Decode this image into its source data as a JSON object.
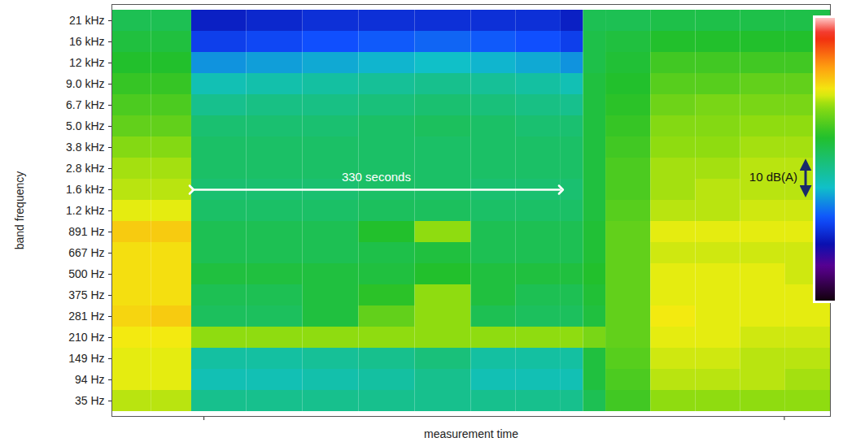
{
  "chart_data": {
    "type": "heatmap",
    "x_label": "measurement time",
    "y_label": "band frequency",
    "xlim": [
      0,
      640
    ],
    "xticks": [
      82,
      599
    ],
    "tick_labels": "y",
    "x_edges": [
      0,
      35,
      71,
      120,
      170,
      220,
      270,
      320,
      360,
      400,
      420,
      440,
      480,
      520,
      560,
      600,
      640
    ],
    "categories": [
      "35 Hz",
      "94 Hz",
      "149 Hz",
      "210 Hz",
      "281 Hz",
      "375 Hz",
      "500 Hz",
      "667 Hz",
      "891 Hz",
      "1.2 kHz",
      "1.6 kHz",
      "2.8 kHz",
      "3.8 kHz",
      "5.0 kHz",
      "6.7 kHz",
      "9.0 kHz",
      "12 kHz",
      "16 kHz",
      "21 kHz"
    ],
    "levels": [
      [
        64,
        64,
        42,
        42,
        42,
        42,
        42,
        42,
        42,
        42,
        48,
        55,
        62,
        62,
        62,
        62
      ],
      [
        66,
        66,
        38,
        38,
        39,
        40,
        42,
        38,
        38,
        38,
        50,
        56,
        64,
        64,
        64,
        63
      ],
      [
        66,
        66,
        40,
        40,
        41,
        42,
        44,
        40,
        40,
        40,
        50,
        57,
        65,
        65,
        64,
        64
      ],
      [
        67,
        67,
        62,
        62,
        62,
        62,
        62,
        62,
        62,
        62,
        60,
        58,
        66,
        66,
        65,
        65
      ],
      [
        69,
        70,
        47,
        47,
        50,
        58,
        62,
        48,
        47,
        47,
        50,
        58,
        67,
        66,
        66,
        66
      ],
      [
        68,
        68,
        48,
        48,
        50,
        53,
        62,
        50,
        48,
        48,
        51,
        58,
        66,
        66,
        66,
        66
      ],
      [
        68,
        68,
        50,
        50,
        50,
        50,
        52,
        50,
        50,
        50,
        52,
        58,
        66,
        66,
        66,
        65
      ],
      [
        68,
        68,
        48,
        48,
        48,
        49,
        50,
        48,
        48,
        48,
        51,
        58,
        65,
        65,
        65,
        65
      ],
      [
        70,
        70,
        48,
        48,
        48,
        52,
        62,
        48,
        48,
        48,
        51,
        58,
        66,
        66,
        66,
        66
      ],
      [
        66,
        66,
        46,
        46,
        46,
        47,
        47,
        46,
        46,
        46,
        50,
        57,
        64,
        64,
        65,
        65
      ],
      [
        64,
        64,
        45,
        45,
        45,
        46,
        46,
        45,
        45,
        45,
        50,
        56,
        63,
        64,
        64,
        64
      ],
      [
        63,
        63,
        46,
        46,
        46,
        46,
        46,
        46,
        46,
        46,
        50,
        56,
        63,
        63,
        64,
        64
      ],
      [
        61,
        61,
        46,
        46,
        46,
        46,
        46,
        46,
        46,
        46,
        50,
        55,
        62,
        62,
        63,
        63
      ],
      [
        58,
        58,
        45,
        45,
        45,
        46,
        47,
        46,
        45,
        45,
        50,
        54,
        61,
        61,
        62,
        62
      ],
      [
        56,
        56,
        42,
        43,
        43,
        44,
        45,
        44,
        43,
        42,
        50,
        53,
        59,
        60,
        60,
        60
      ],
      [
        54,
        54,
        38,
        39,
        40,
        41,
        42,
        41,
        40,
        38,
        50,
        52,
        57,
        57,
        58,
        58
      ],
      [
        52,
        52,
        32,
        33,
        34,
        35,
        36,
        35,
        34,
        32,
        49,
        51,
        55,
        55,
        55,
        55
      ],
      [
        50,
        50,
        24,
        25,
        26,
        27,
        28,
        27,
        26,
        24,
        49,
        50,
        52,
        52,
        52,
        52
      ],
      [
        48,
        48,
        20,
        21,
        22,
        22,
        22,
        22,
        22,
        20,
        48,
        48,
        49,
        49,
        49,
        49
      ]
    ],
    "annotations": [
      {
        "text": "330 seconds",
        "x1": 71,
        "x2": 400,
        "y": "1.6 kHz"
      }
    ],
    "colorbar": {
      "range": [
        0,
        90
      ],
      "annotation": {
        "text": "10 dB(A)",
        "from": 34,
        "to": 44
      }
    }
  }
}
